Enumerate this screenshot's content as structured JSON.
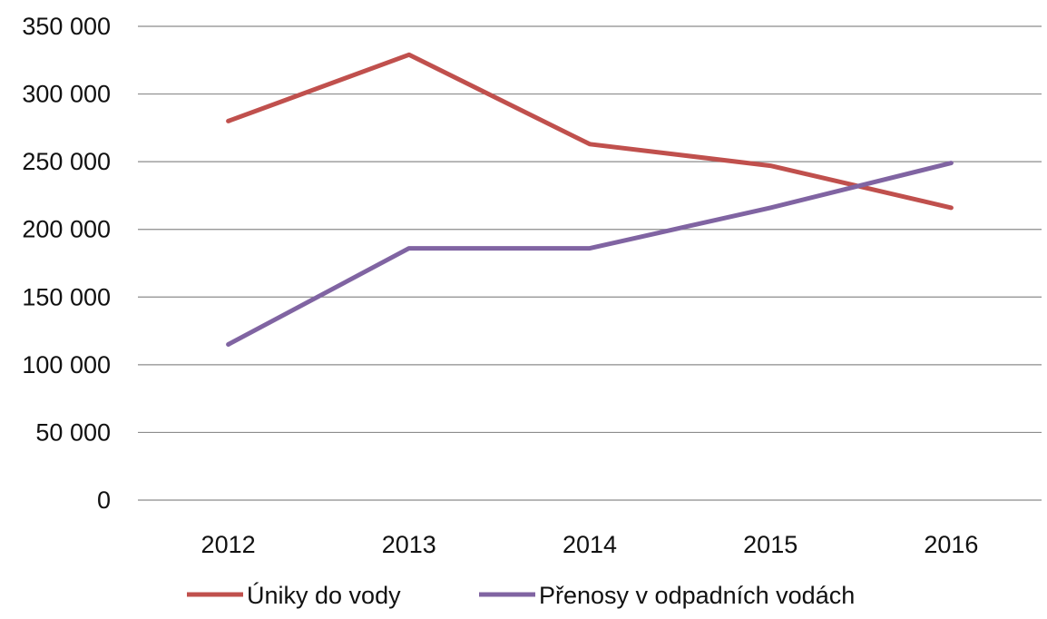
{
  "chart_data": {
    "type": "line",
    "title": "",
    "xlabel": "",
    "ylabel": "",
    "categories": [
      "2012",
      "2013",
      "2014",
      "2015",
      "2016"
    ],
    "ylim": [
      0,
      350000
    ],
    "y_ticks": [
      0,
      50000,
      100000,
      150000,
      200000,
      250000,
      300000,
      350000
    ],
    "y_tick_labels": [
      "0",
      "50 000",
      "100 000",
      "150 000",
      "200 000",
      "250 000",
      "300 000",
      "350 000"
    ],
    "grid": true,
    "legend_position": "bottom",
    "series": [
      {
        "name": "Úniky do vody",
        "color": "#c0504d",
        "values": [
          280000,
          329000,
          263000,
          247000,
          216000
        ]
      },
      {
        "name": "Přenosy v odpadních vodách",
        "color": "#8064a2",
        "values": [
          115000,
          186000,
          186000,
          216000,
          249000
        ]
      }
    ]
  }
}
